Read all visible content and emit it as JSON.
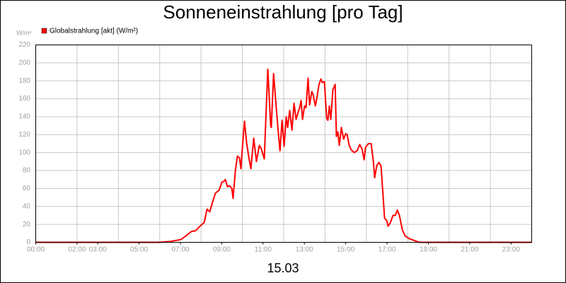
{
  "chart_data": {
    "type": "line",
    "title": "Sonneneinstrahlung [pro Tag]",
    "y_unit": "W/m²",
    "subtitle": "15.03",
    "xlim": [
      0,
      24
    ],
    "ylim": [
      0,
      220
    ],
    "yticks": [
      0,
      20,
      40,
      60,
      80,
      100,
      120,
      140,
      160,
      180,
      200,
      220
    ],
    "xticks": [
      {
        "value": 0,
        "label": "00:00"
      },
      {
        "value": 2,
        "label": "02:00"
      },
      {
        "value": 3,
        "label": "03:00"
      },
      {
        "value": 5,
        "label": "05:00"
      },
      {
        "value": 7,
        "label": "07:00"
      },
      {
        "value": 9,
        "label": "09:00"
      },
      {
        "value": 11,
        "label": "11:00"
      },
      {
        "value": 13,
        "label": "13:00"
      },
      {
        "value": 15,
        "label": "15:00"
      },
      {
        "value": 17,
        "label": "17:00"
      },
      {
        "value": 19,
        "label": "19:00"
      },
      {
        "value": 21,
        "label": "21:00"
      },
      {
        "value": 23,
        "label": "23:00"
      }
    ],
    "x_grid": [
      2,
      4,
      6,
      8,
      10,
      12,
      14,
      16,
      18,
      20,
      22
    ],
    "grid": true,
    "x": [
      0,
      6.0,
      6.51,
      7.02,
      7.26,
      7.53,
      7.74,
      7.95,
      8.15,
      8.29,
      8.42,
      8.56,
      8.7,
      8.87,
      9.01,
      9.11,
      9.18,
      9.28,
      9.38,
      9.49,
      9.55,
      9.66,
      9.76,
      9.86,
      9.93,
      10.0,
      10.1,
      10.21,
      10.31,
      10.41,
      10.55,
      10.68,
      10.82,
      10.92,
      11.06,
      11.23,
      11.37,
      11.4,
      11.51,
      11.64,
      11.71,
      11.82,
      11.92,
      12.02,
      12.12,
      12.19,
      12.29,
      12.4,
      12.5,
      12.6,
      12.71,
      12.77,
      12.84,
      12.91,
      13.01,
      13.08,
      13.18,
      13.25,
      13.36,
      13.42,
      13.53,
      13.6,
      13.7,
      13.8,
      13.87,
      13.97,
      14.08,
      14.14,
      14.21,
      14.28,
      14.38,
      14.49,
      14.55,
      14.62,
      14.69,
      14.79,
      14.9,
      15.0,
      15.07,
      15.17,
      15.27,
      15.41,
      15.55,
      15.68,
      15.79,
      15.89,
      15.96,
      16.1,
      16.23,
      16.34,
      16.4,
      16.51,
      16.61,
      16.71,
      16.82,
      16.88,
      16.99,
      17.05,
      17.16,
      17.29,
      17.4,
      17.5,
      17.6,
      17.67,
      17.74,
      17.88,
      18.08,
      18.32,
      18.56,
      24
    ],
    "series": [
      {
        "name": "Globalstrahlung [akt] (W/m²)",
        "color": "#ff0000",
        "values": [
          0,
          0,
          1,
          3,
          7,
          12,
          13,
          18,
          22,
          37,
          34,
          45,
          55,
          58,
          67,
          68,
          70,
          62,
          63,
          60,
          49,
          80,
          96,
          94,
          82,
          105,
          135,
          110,
          95,
          82,
          116,
          90,
          108,
          104,
          93,
          193,
          130,
          128,
          188,
          150,
          130,
          102,
          136,
          107,
          140,
          128,
          147,
          125,
          155,
          137,
          146,
          150,
          158,
          137,
          152,
          150,
          183,
          153,
          168,
          165,
          152,
          160,
          175,
          182,
          178,
          179,
          138,
          136,
          152,
          137,
          170,
          176,
          118,
          123,
          108,
          128,
          115,
          121,
          120,
          108,
          103,
          100,
          102,
          109,
          104,
          92,
          106,
          110,
          110,
          90,
          72,
          86,
          89,
          85,
          48,
          27,
          24,
          18,
          22,
          30,
          30,
          36,
          30,
          22,
          14,
          7,
          4,
          2,
          0,
          0
        ]
      }
    ]
  }
}
